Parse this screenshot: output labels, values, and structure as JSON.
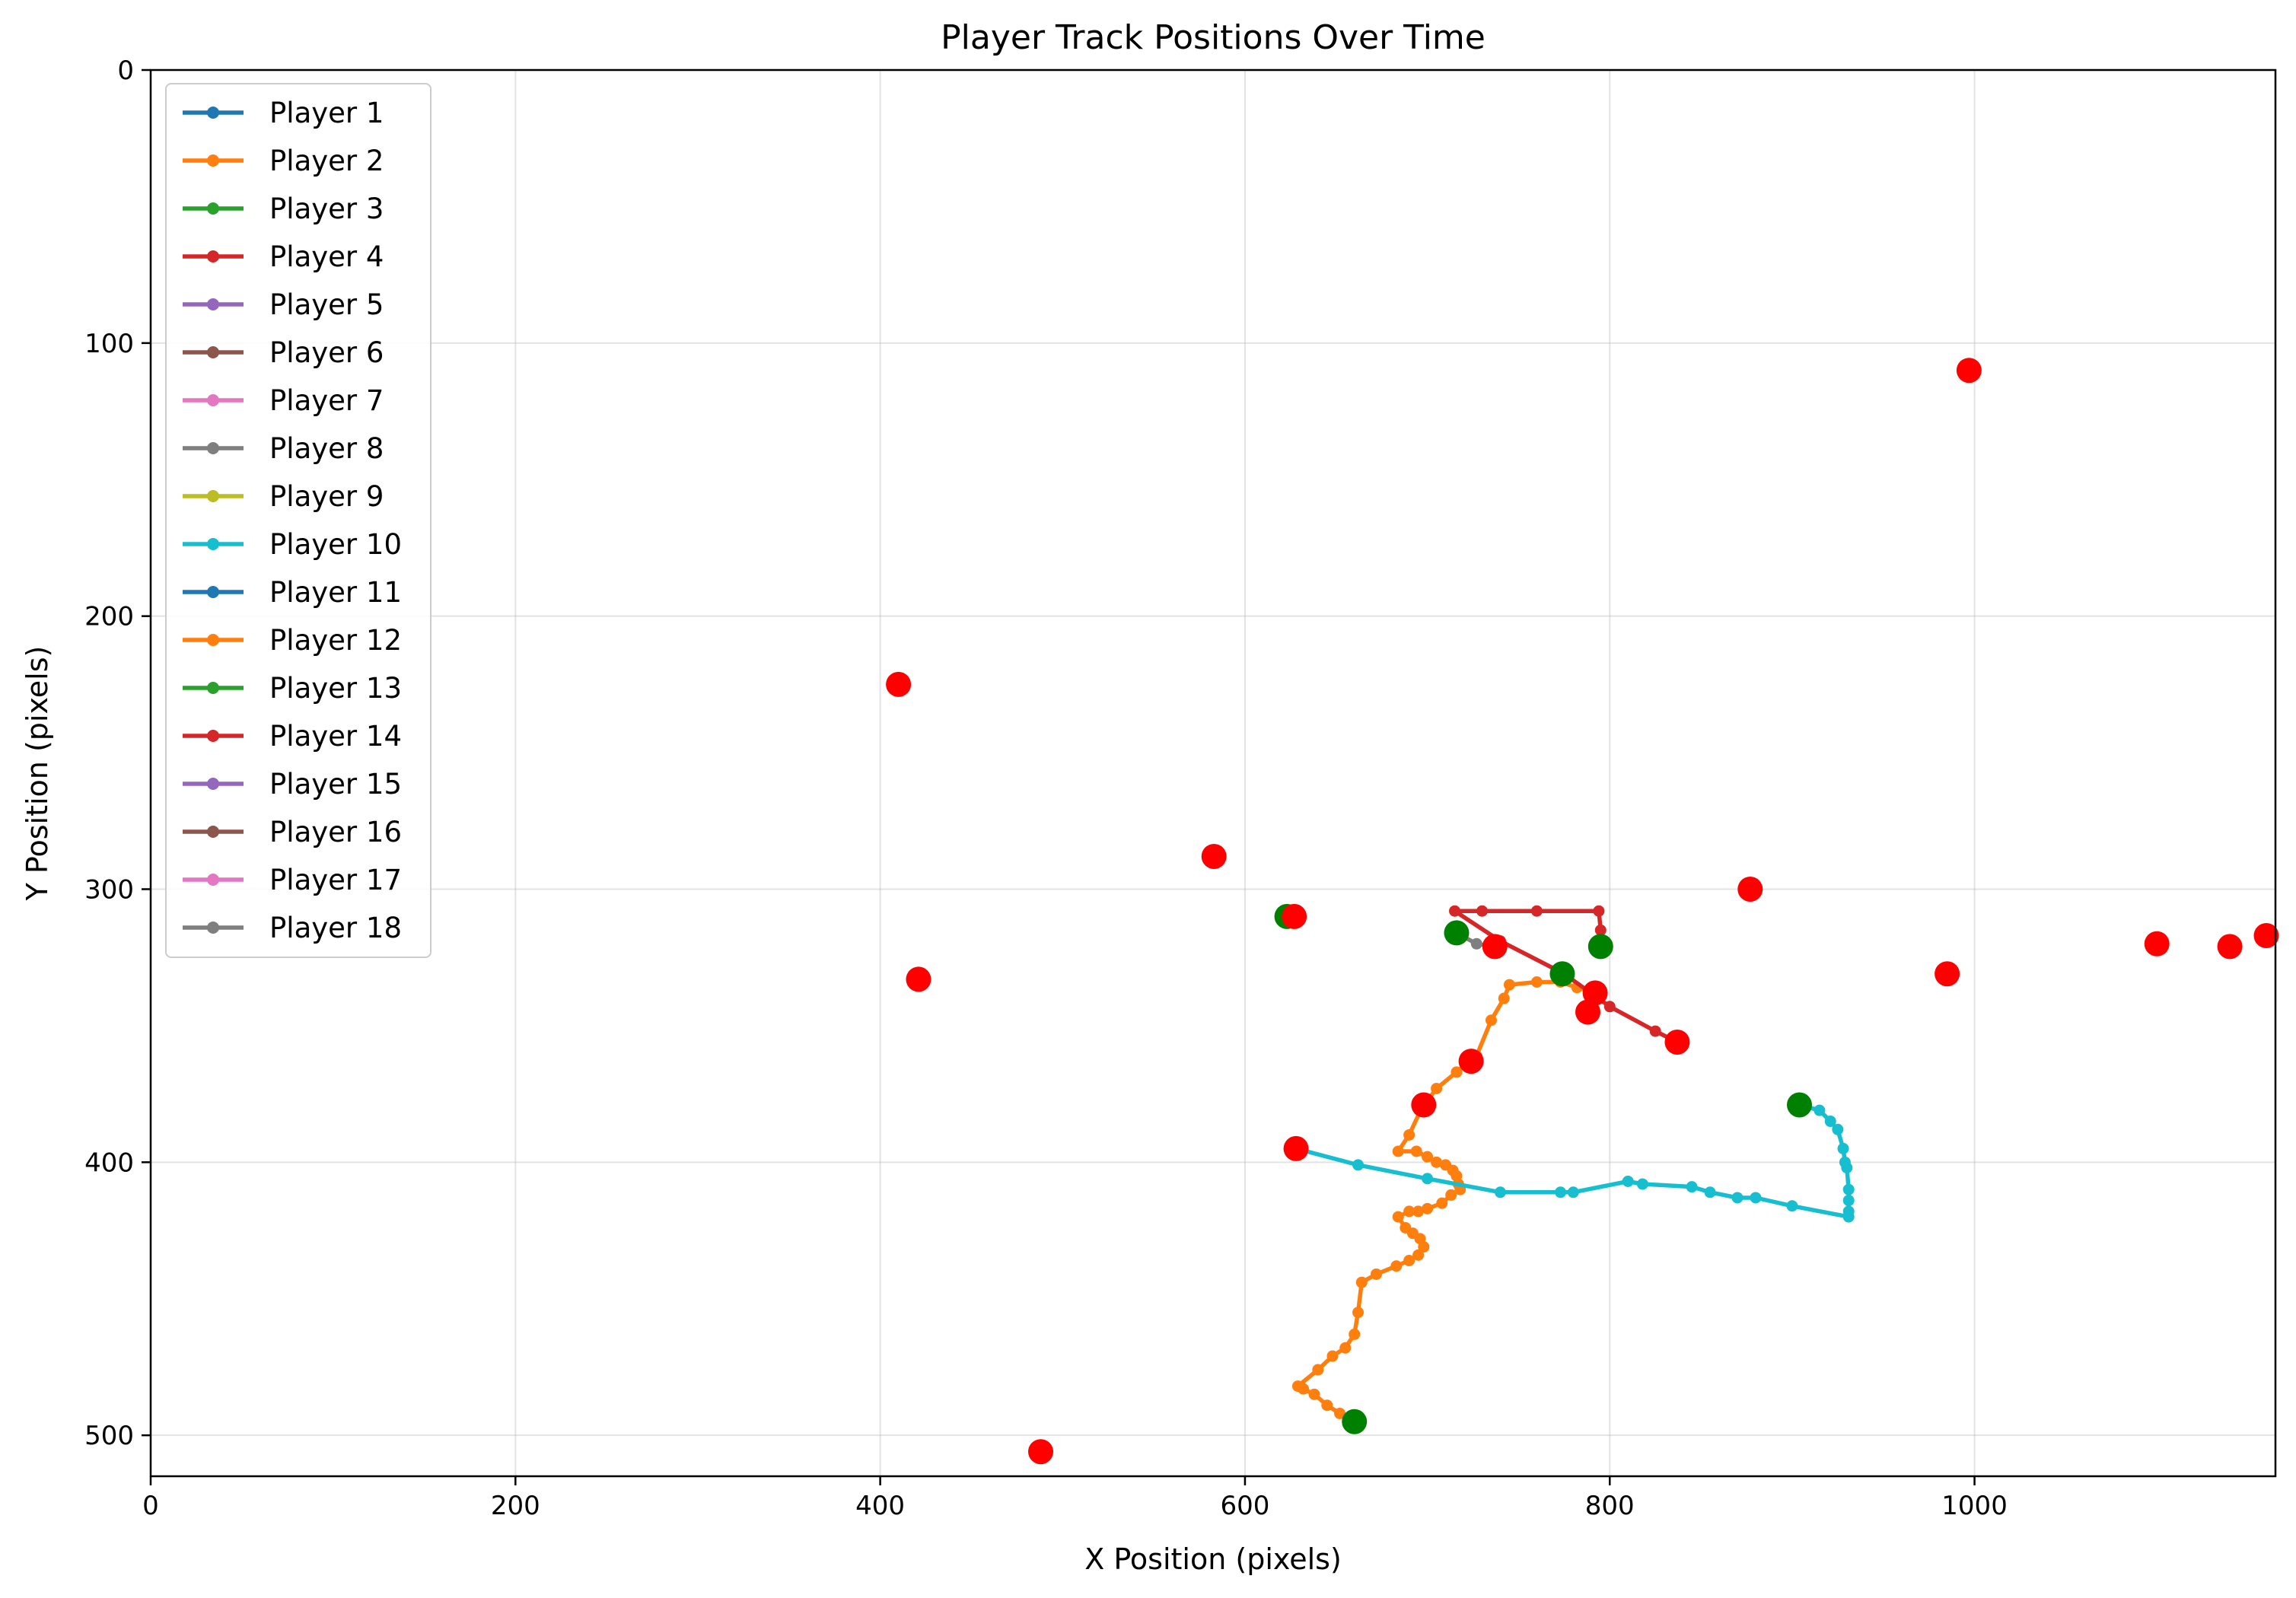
{
  "chart_data": {
    "type": "line",
    "title": "Player Track Positions Over Time",
    "xlabel": "X Position (pixels)",
    "ylabel": "Y Position (pixels)",
    "xlim": [
      0,
      1165
    ],
    "ylim": [
      515,
      0
    ],
    "y_inverted": true,
    "x_ticks": [
      0,
      200,
      400,
      600,
      800,
      1000
    ],
    "y_ticks": [
      0,
      100,
      200,
      300,
      400,
      500
    ],
    "grid": true,
    "legend_position": "upper-left",
    "start_marker_color": "#008000",
    "end_marker_color": "#ff0000",
    "series": [
      {
        "name": "Player 1",
        "color": "#1f77b4",
        "points": [],
        "start": [],
        "end": [
          1160,
          317
        ]
      },
      {
        "name": "Player 2",
        "color": "#ff7f0e",
        "points": [
          [
            660,
            495
          ],
          [
            652,
            492
          ],
          [
            645,
            489
          ],
          [
            638,
            485
          ],
          [
            632,
            483
          ],
          [
            629,
            482
          ],
          [
            640,
            476
          ],
          [
            648,
            471
          ],
          [
            655,
            468
          ],
          [
            660,
            463
          ],
          [
            662,
            455
          ],
          [
            664,
            444
          ],
          [
            672,
            441
          ],
          [
            683,
            438
          ],
          [
            690,
            436
          ],
          [
            695,
            434
          ],
          [
            698,
            431
          ],
          [
            696,
            428
          ],
          [
            692,
            426
          ],
          [
            688,
            424
          ],
          [
            684,
            420
          ],
          [
            690,
            418
          ],
          [
            695,
            418
          ],
          [
            700,
            417
          ],
          [
            708,
            415
          ],
          [
            713,
            412
          ],
          [
            718,
            410
          ],
          [
            717,
            408
          ],
          [
            716,
            405
          ],
          [
            714,
            403
          ],
          [
            710,
            401
          ],
          [
            705,
            400
          ],
          [
            700,
            398
          ],
          [
            694,
            396
          ],
          [
            684,
            396
          ],
          [
            690,
            390
          ],
          [
            697,
            380
          ],
          [
            705,
            373
          ],
          [
            716,
            367
          ],
          [
            727,
            361
          ],
          [
            735,
            348
          ],
          [
            742,
            340
          ],
          [
            745,
            335
          ],
          [
            760,
            334
          ],
          [
            773,
            334
          ],
          [
            782,
            336
          ],
          [
            792,
            338
          ]
        ],
        "start": [
          660,
          495
        ],
        "end": [
          792,
          338
        ]
      },
      {
        "name": "Player 3",
        "color": "#2ca02c",
        "points": [],
        "start": [],
        "end": [
          1100,
          320
        ]
      },
      {
        "name": "Player 4",
        "color": "#d62728",
        "points": [
          [
            795,
            321
          ],
          [
            795,
            315
          ],
          [
            794,
            308
          ],
          [
            760,
            308
          ],
          [
            730,
            308
          ],
          [
            715,
            308
          ],
          [
            740,
            319
          ],
          [
            775,
            331
          ],
          [
            800,
            343
          ],
          [
            825,
            352
          ],
          [
            837,
            356
          ]
        ],
        "start": [
          795,
          321
        ],
        "end": [
          837,
          356
        ]
      },
      {
        "name": "Player 5",
        "color": "#9467bd",
        "points": [],
        "start": [],
        "end": [
          1140,
          321
        ]
      },
      {
        "name": "Player 6",
        "color": "#8c564b",
        "points": [],
        "start": [],
        "end": [
          985,
          331
        ]
      },
      {
        "name": "Player 7",
        "color": "#e377c2",
        "points": [],
        "start": [],
        "end": [
          877,
          300
        ]
      },
      {
        "name": "Player 8",
        "color": "#7f7f7f",
        "points": [
          [
            716,
            316
          ],
          [
            727,
            320
          ],
          [
            737,
            321
          ]
        ],
        "start": [
          716,
          316
        ],
        "end": [
          737,
          321
        ]
      },
      {
        "name": "Player 9",
        "color": "#bcbd22",
        "points": [],
        "start": [],
        "end": [
          997,
          110
        ]
      },
      {
        "name": "Player 10",
        "color": "#17becf",
        "points": [
          [
            904,
            379
          ],
          [
            915,
            381
          ],
          [
            921,
            385
          ],
          [
            925,
            388
          ],
          [
            928,
            395
          ],
          [
            929,
            400
          ],
          [
            930,
            402
          ],
          [
            931,
            410
          ],
          [
            931,
            414
          ],
          [
            931,
            418
          ],
          [
            931,
            420
          ],
          [
            900,
            416
          ],
          [
            880,
            413
          ],
          [
            870,
            413
          ],
          [
            855,
            411
          ],
          [
            845,
            409
          ],
          [
            818,
            408
          ],
          [
            810,
            407
          ],
          [
            780,
            411
          ],
          [
            773,
            411
          ],
          [
            740,
            411
          ],
          [
            700,
            406
          ],
          [
            662,
            401
          ],
          [
            628,
            395
          ]
        ],
        "start": [
          904,
          379
        ],
        "end": [
          628,
          395
        ]
      },
      {
        "name": "Player 11",
        "color": "#1f77b4",
        "points": [],
        "start": [],
        "end": [
          421,
          333
        ]
      },
      {
        "name": "Player 12",
        "color": "#ff7f0e",
        "points": [],
        "start": [],
        "end": [
          583,
          288
        ]
      },
      {
        "name": "Player 13",
        "color": "#2ca02c",
        "points": [],
        "start": [
          623,
          310
        ],
        "end": [
          627,
          310
        ]
      },
      {
        "name": "Player 14",
        "color": "#d62728",
        "points": [],
        "start": [
          774,
          331
        ],
        "end": [
          788,
          345
        ]
      },
      {
        "name": "Player 15",
        "color": "#9467bd",
        "points": [],
        "start": [],
        "end": [
          410,
          225
        ]
      },
      {
        "name": "Player 16",
        "color": "#8c564b",
        "points": [],
        "start": [],
        "end": [
          488,
          506
        ]
      },
      {
        "name": "Player 17",
        "color": "#e377c2",
        "points": [],
        "start": [],
        "end": [
          724,
          363
        ]
      },
      {
        "name": "Player 18",
        "color": "#7f7f7f",
        "points": [],
        "start": [],
        "end": [
          698,
          379
        ]
      }
    ]
  }
}
